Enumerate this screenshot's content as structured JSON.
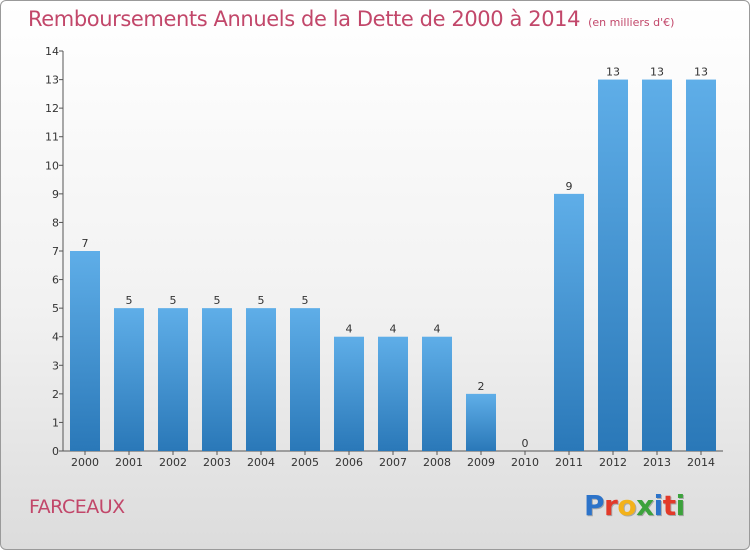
{
  "header": {
    "title": "Remboursements Annuels de la Dette de 2000 à 2014",
    "unit": "(en milliers d'€)"
  },
  "footer": {
    "commune": "FARCEAUX",
    "logo_letters": [
      "P",
      "r",
      "o",
      "x",
      "i",
      "t",
      "i"
    ],
    "logo_colors": [
      "#2c73c9",
      "#e23a2a",
      "#f3b21a",
      "#3ca23c",
      "#2c73c9",
      "#e23a2a",
      "#3ca23c"
    ]
  },
  "colors": {
    "title": "#c2476a",
    "bar_top": "#5faee8",
    "bar_bottom": "#2a78b8",
    "axis": "#555555"
  },
  "chart_data": {
    "type": "bar",
    "categories": [
      "2000",
      "2001",
      "2002",
      "2003",
      "2004",
      "2005",
      "2006",
      "2007",
      "2008",
      "2009",
      "2010",
      "2011",
      "2012",
      "2013",
      "2014"
    ],
    "values": [
      7,
      5,
      5,
      5,
      5,
      5,
      4,
      4,
      4,
      2,
      0,
      9,
      13,
      13,
      13
    ],
    "title": "Remboursements Annuels de la Dette de 2000 à 2014",
    "ylim": [
      0,
      14
    ],
    "yticks": [
      0,
      1,
      2,
      3,
      4,
      5,
      6,
      7,
      8,
      9,
      10,
      11,
      12,
      13,
      14
    ],
    "grid": false
  }
}
